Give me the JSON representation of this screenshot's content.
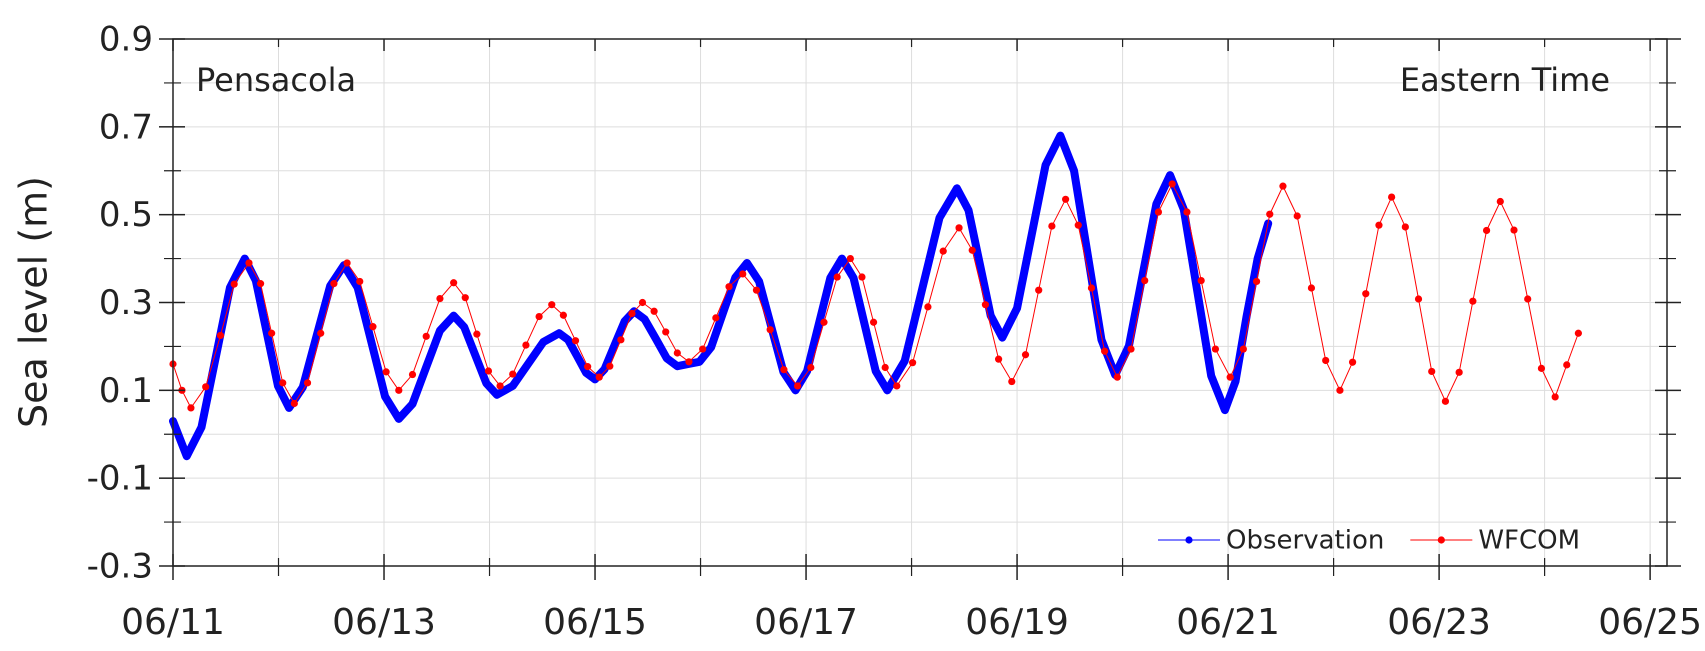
{
  "chart_data": {
    "type": "line",
    "annotations": [
      "Pensacola",
      "Eastern Time"
    ],
    "ylabel": "Sea level (m)",
    "xlim": [
      0,
      14.16
    ],
    "xticks": [
      {
        "value": 0,
        "label": "06/11"
      },
      {
        "value": 2,
        "label": "06/13"
      },
      {
        "value": 4,
        "label": "06/15"
      },
      {
        "value": 6,
        "label": "06/17"
      },
      {
        "value": 8,
        "label": "06/19"
      },
      {
        "value": 10,
        "label": "06/21"
      },
      {
        "value": 12,
        "label": "06/23"
      },
      {
        "value": 14,
        "label": "06/25"
      }
    ],
    "x_minor_ticks": [
      1,
      3,
      5,
      7,
      9,
      11,
      13
    ],
    "ylim": [
      -0.3,
      0.9
    ],
    "yticks": [
      0.9,
      0.7,
      0.5,
      0.3,
      0.1,
      -0.1,
      -0.3
    ],
    "y_minor_ticks": [
      0.8,
      0.6,
      0.4,
      0.2,
      0,
      -0.2
    ],
    "grid": true,
    "legend": "lower right",
    "series": [
      {
        "name": "Observation",
        "color": "#0000ff",
        "x": [
          0,
          0.065,
          0.13,
          0.27,
          0.405,
          0.54,
          0.68,
          0.785,
          0.89,
          0.995,
          1.1,
          1.23,
          1.36,
          1.49,
          1.62,
          1.75,
          1.88,
          2.01,
          2.14,
          2.27,
          2.4,
          2.53,
          2.66,
          2.76,
          2.865,
          2.97,
          3.07,
          3.22,
          3.365,
          3.51,
          3.66,
          3.745,
          3.83,
          3.915,
          4.0,
          4.09,
          4.185,
          4.28,
          4.37,
          4.47,
          4.575,
          4.68,
          4.78,
          4.885,
          4.99,
          5.1,
          5.215,
          5.33,
          5.44,
          5.555,
          5.67,
          5.785,
          5.9,
          6.01,
          6.12,
          6.23,
          6.34,
          6.45,
          6.555,
          6.66,
          6.77,
          6.935,
          7.1,
          7.265,
          7.43,
          7.54,
          7.645,
          7.75,
          7.86,
          8.0,
          8.135,
          8.27,
          8.41,
          8.54,
          8.67,
          8.8,
          8.93,
          9.06,
          9.19,
          9.32,
          9.45,
          9.58,
          9.71,
          9.84,
          9.97,
          10.07,
          10.175,
          10.28,
          10.38
        ],
        "values": [
          0.03,
          -0.01,
          -0.05,
          0.016,
          0.175,
          0.334,
          0.4,
          0.35,
          0.23,
          0.11,
          0.06,
          0.107,
          0.223,
          0.338,
          0.385,
          0.334,
          0.21,
          0.086,
          0.035,
          0.069,
          0.153,
          0.236,
          0.27,
          0.244,
          0.18,
          0.116,
          0.09,
          0.11,
          0.16,
          0.21,
          0.23,
          0.215,
          0.178,
          0.14,
          0.125,
          0.148,
          0.203,
          0.257,
          0.28,
          0.262,
          0.218,
          0.173,
          0.155,
          0.16,
          0.165,
          0.198,
          0.278,
          0.357,
          0.39,
          0.348,
          0.245,
          0.142,
          0.1,
          0.144,
          0.25,
          0.356,
          0.4,
          0.356,
          0.25,
          0.144,
          0.1,
          0.167,
          0.33,
          0.493,
          0.56,
          0.51,
          0.39,
          0.27,
          0.22,
          0.287,
          0.45,
          0.613,
          0.68,
          0.6,
          0.408,
          0.215,
          0.135,
          0.201,
          0.363,
          0.524,
          0.59,
          0.512,
          0.323,
          0.133,
          0.055,
          0.12,
          0.268,
          0.4,
          0.48
        ]
      },
      {
        "name": "WFCOM",
        "color": "#ff0000",
        "x": [
          0,
          0.085,
          0.17,
          0.31,
          0.45,
          0.58,
          0.72,
          0.83,
          0.935,
          1.04,
          1.15,
          1.275,
          1.4,
          1.525,
          1.65,
          1.77,
          1.895,
          2.02,
          2.14,
          2.27,
          2.4,
          2.53,
          2.66,
          2.77,
          2.88,
          2.99,
          3.1,
          3.22,
          3.345,
          3.47,
          3.59,
          3.7,
          3.815,
          3.93,
          4.04,
          4.14,
          4.245,
          4.35,
          4.45,
          4.56,
          4.67,
          4.78,
          4.89,
          5.02,
          5.145,
          5.27,
          5.4,
          5.53,
          5.66,
          5.79,
          5.92,
          6.045,
          6.17,
          6.295,
          6.42,
          6.53,
          6.64,
          6.75,
          6.86,
          7.01,
          7.155,
          7.3,
          7.45,
          7.575,
          7.7,
          7.825,
          7.95,
          8.08,
          8.205,
          8.33,
          8.46,
          8.58,
          8.705,
          8.83,
          8.95,
          9.08,
          9.21,
          9.34,
          9.47,
          9.61,
          9.745,
          9.88,
          10.02,
          10.145,
          10.27,
          10.395,
          10.52,
          10.655,
          10.79,
          10.925,
          11.06,
          11.18,
          11.305,
          11.43,
          11.55,
          11.68,
          11.805,
          11.93,
          12.06,
          12.19,
          12.32,
          12.45,
          12.58,
          12.71,
          12.84,
          12.97,
          13.1,
          13.21,
          13.32
        ],
        "values": [
          0.16,
          0.1,
          0.06,
          0.108,
          0.225,
          0.342,
          0.39,
          0.343,
          0.23,
          0.117,
          0.07,
          0.117,
          0.23,
          0.343,
          0.39,
          0.348,
          0.245,
          0.142,
          0.1,
          0.136,
          0.223,
          0.309,
          0.345,
          0.311,
          0.228,
          0.144,
          0.11,
          0.137,
          0.203,
          0.268,
          0.295,
          0.271,
          0.213,
          0.154,
          0.13,
          0.155,
          0.215,
          0.275,
          0.3,
          0.28,
          0.233,
          0.185,
          0.165,
          0.194,
          0.265,
          0.336,
          0.365,
          0.328,
          0.238,
          0.147,
          0.11,
          0.152,
          0.255,
          0.358,
          0.4,
          0.358,
          0.255,
          0.152,
          0.11,
          0.163,
          0.29,
          0.417,
          0.47,
          0.419,
          0.295,
          0.171,
          0.12,
          0.181,
          0.328,
          0.474,
          0.535,
          0.476,
          0.333,
          0.189,
          0.13,
          0.194,
          0.35,
          0.506,
          0.57,
          0.506,
          0.35,
          0.194,
          0.13,
          0.194,
          0.348,
          0.501,
          0.565,
          0.497,
          0.333,
          0.168,
          0.1,
          0.164,
          0.32,
          0.476,
          0.54,
          0.472,
          0.308,
          0.143,
          0.075,
          0.141,
          0.303,
          0.464,
          0.53,
          0.465,
          0.308,
          0.15,
          0.085,
          0.158,
          0.23
        ]
      }
    ]
  }
}
